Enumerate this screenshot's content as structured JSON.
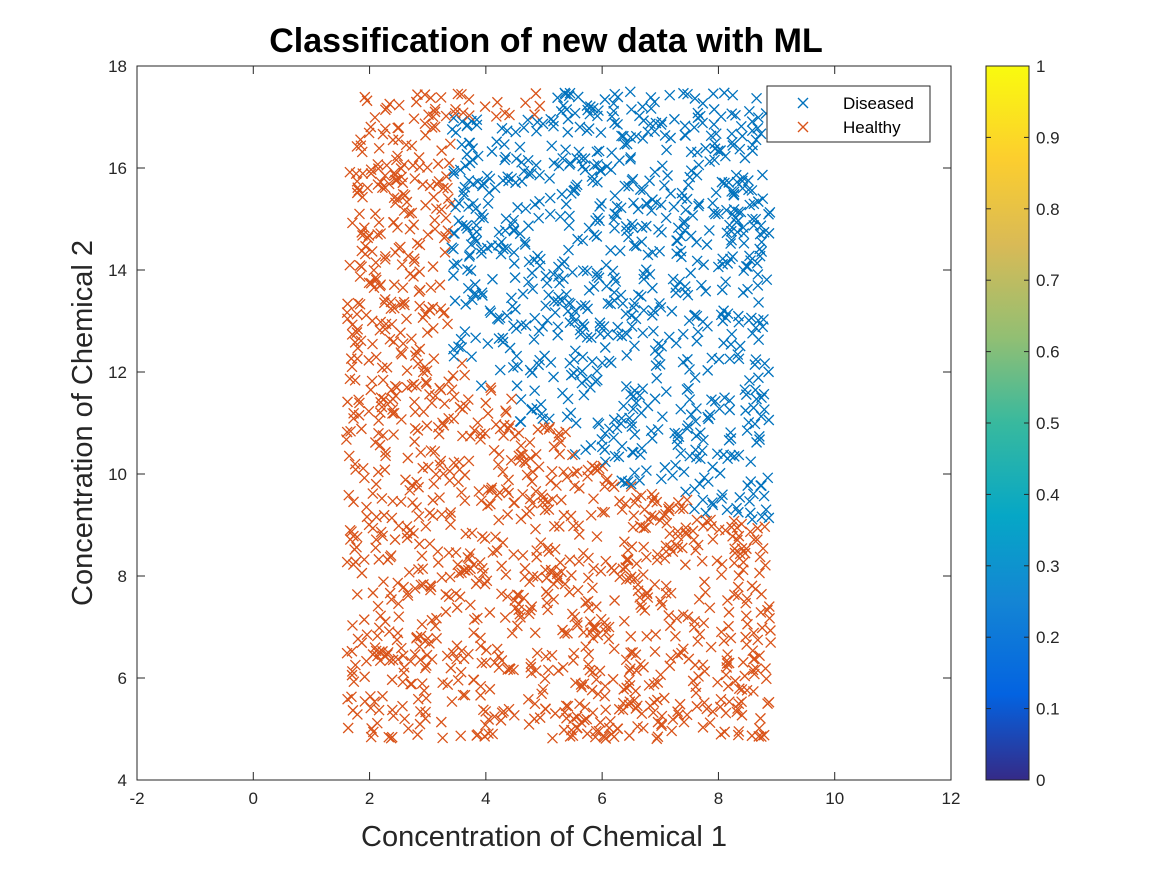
{
  "chart_data": {
    "type": "scatter",
    "title": "Classification of new data with ML",
    "xlabel": "Concentration of Chemical 1",
    "ylabel": "Concentration of Chemical 2",
    "xlim": [
      -2,
      12
    ],
    "ylim": [
      4,
      18
    ],
    "xticks": [
      "-2",
      "0",
      "2",
      "4",
      "6",
      "8",
      "10",
      "12"
    ],
    "yticks": [
      "4",
      "6",
      "8",
      "10",
      "12",
      "14",
      "16",
      "18"
    ],
    "grid": false,
    "marker": "x",
    "legend": {
      "placement": "top-right"
    },
    "series": [
      {
        "name": "Diseased",
        "color": "#0072BD"
      },
      {
        "name": "Healthy",
        "color": "#D95319"
      }
    ],
    "sampling_region": {
      "x": [
        1.6,
        8.9
      ],
      "y": [
        4.8,
        17.5
      ]
    },
    "class_regions_description": "Diseased where x > 3.4 and above a staircase boundary",
    "boundary": [
      {
        "x_from": 3.4,
        "x_to": 3.9,
        "y_above": 12.2
      },
      {
        "x_from": 3.9,
        "x_to": 4.5,
        "y_above": 11.7
      },
      {
        "x_from": 4.5,
        "x_to": 5.5,
        "y_above": 11.0
      },
      {
        "x_from": 5.5,
        "x_to": 6.3,
        "y_above": 10.2
      },
      {
        "x_from": 6.3,
        "x_to": 6.9,
        "y_above": 9.8
      },
      {
        "x_from": 6.9,
        "x_to": 7.5,
        "y_above": 9.6
      },
      {
        "x_from": 7.5,
        "x_to": 8.9,
        "y_above": 9.1
      }
    ],
    "top_healthy_cutoff": {
      "x_to": 5.0,
      "y_above": 17.0,
      "note": "near top edge healthy extends to x≈5"
    },
    "colorbar": {
      "colormap": "parula",
      "ticks": [
        "0",
        "0.1",
        "0.2",
        "0.3",
        "0.4",
        "0.5",
        "0.6",
        "0.7",
        "0.8",
        "0.9",
        "1"
      ],
      "colors": [
        "#352A87",
        "#0363E1",
        "#1485D4",
        "#06A7C6",
        "#38B99E",
        "#92BF73",
        "#D9BA56",
        "#FCCE2E",
        "#F9FB0E"
      ]
    }
  }
}
